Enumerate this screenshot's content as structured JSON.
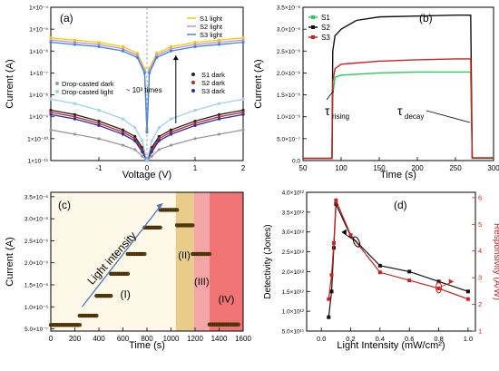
{
  "panels": {
    "a": {
      "label": "(a)"
    },
    "b": {
      "label": "(b)"
    },
    "c": {
      "label": "(c)"
    },
    "d": {
      "label": "(d)"
    }
  },
  "chart_data": [
    {
      "panel": "(a)",
      "type": "line",
      "xlabel": "Voltage (V)",
      "ylabel": "Current (A)",
      "xlim": [
        -2,
        2
      ],
      "ylim_exp": [
        -11,
        -4
      ],
      "log_scale_y": true,
      "xticks": [
        -1,
        0,
        1,
        2
      ],
      "yticks": [
        "1×10⁻⁴",
        "1×10⁻⁵",
        "1×10⁻⁶",
        "1×10⁻⁷",
        "1×10⁻⁸",
        "1×10⁻⁹",
        "1×10⁻¹⁰",
        "1×10⁻¹¹"
      ],
      "ytick_exps": [
        -4,
        -5,
        -6,
        -7,
        -8,
        -9,
        -10,
        -11
      ],
      "annotation": "~ 10³ times",
      "legend_light": [
        "S1 light",
        "S2 light",
        "S3 light"
      ],
      "legend_dark": [
        "S1 dark",
        "S2 dark",
        "S3 dark"
      ],
      "legend_drop": [
        "Drop-casted dark",
        "Drop-casted  light"
      ],
      "series": [
        {
          "name": "S1 light",
          "color": "#e8d000",
          "x": [
            -2,
            -1.5,
            -1,
            -0.5,
            -0.2,
            -0.05,
            0,
            0.05,
            0.2,
            0.5,
            1,
            1.5,
            2
          ],
          "y_exp": [
            -5.4,
            -5.5,
            -5.6,
            -5.8,
            -6.1,
            -6.8,
            -9.5,
            -6.8,
            -6.1,
            -5.8,
            -5.6,
            -5.5,
            -5.4
          ]
        },
        {
          "name": "S2 light",
          "color": "#d08ad0",
          "x": [
            -2,
            -1.5,
            -1,
            -0.5,
            -0.2,
            -0.05,
            0,
            0.05,
            0.2,
            0.5,
            1,
            1.5,
            2
          ],
          "y_exp": [
            -5.5,
            -5.6,
            -5.7,
            -5.9,
            -6.2,
            -6.9,
            -9.6,
            -6.9,
            -6.2,
            -5.9,
            -5.7,
            -5.6,
            -5.5
          ]
        },
        {
          "name": "S3 light",
          "color": "#3c8ae0",
          "x": [
            -2,
            -1.5,
            -1,
            -0.5,
            -0.2,
            -0.05,
            0,
            0.05,
            0.2,
            0.5,
            1,
            1.5,
            2
          ],
          "y_exp": [
            -5.6,
            -5.7,
            -5.8,
            -6.0,
            -6.3,
            -7.0,
            -9.7,
            -7.0,
            -6.3,
            -6.0,
            -5.8,
            -5.7,
            -5.6
          ]
        },
        {
          "name": "S1 dark",
          "color": "#222222",
          "x": [
            -2,
            -1.5,
            -1,
            -0.5,
            -0.25,
            -0.1,
            0,
            0.1,
            0.25,
            0.5,
            1,
            1.5,
            2
          ],
          "y_exp": [
            -8.7,
            -8.9,
            -9.2,
            -9.6,
            -9.9,
            -10.4,
            -11,
            -10.4,
            -9.9,
            -9.6,
            -9.2,
            -8.9,
            -8.7
          ]
        },
        {
          "name": "S2 dark",
          "color": "#cc2222",
          "x": [
            -2,
            -1.5,
            -1,
            -0.5,
            -0.25,
            -0.1,
            0,
            0.1,
            0.25,
            0.5,
            1,
            1.5,
            2
          ],
          "y_exp": [
            -8.8,
            -9.0,
            -9.3,
            -9.7,
            -10.0,
            -10.5,
            -11,
            -10.5,
            -10.0,
            -9.7,
            -9.3,
            -9.0,
            -8.8
          ]
        },
        {
          "name": "S3 dark",
          "color": "#2233aa",
          "x": [
            -2,
            -1.5,
            -1,
            -0.5,
            -0.25,
            -0.1,
            0,
            0.1,
            0.25,
            0.5,
            1,
            1.5,
            2
          ],
          "y_exp": [
            -8.9,
            -9.1,
            -9.4,
            -9.8,
            -10.1,
            -10.6,
            -11,
            -10.6,
            -10.1,
            -9.8,
            -9.4,
            -9.1,
            -8.9
          ]
        },
        {
          "name": "Drop-casted dark",
          "color": "#999999",
          "x": [
            -2,
            -1.5,
            -1,
            -0.5,
            -0.25,
            -0.1,
            0,
            0.1,
            0.25,
            0.5,
            1,
            1.5,
            2
          ],
          "y_exp": [
            -9.6,
            -9.8,
            -10.0,
            -10.3,
            -10.5,
            -10.8,
            -11,
            -10.8,
            -10.5,
            -10.3,
            -10.0,
            -9.8,
            -9.6
          ]
        },
        {
          "name": "Drop-casted  light",
          "color": "#9ad4e8",
          "x": [
            -2,
            -1.5,
            -1,
            -0.5,
            -0.25,
            -0.1,
            0,
            0.1,
            0.25,
            0.5,
            1,
            1.5,
            2
          ],
          "y_exp": [
            -8.2,
            -8.4,
            -8.7,
            -9.1,
            -9.5,
            -10.1,
            -11,
            -10.1,
            -9.5,
            -9.1,
            -8.7,
            -8.4,
            -8.2
          ]
        }
      ]
    },
    {
      "panel": "(b)",
      "type": "line",
      "xlabel": "Time (s)",
      "ylabel": "Current (A)",
      "xlim": [
        50,
        300
      ],
      "ylim": [
        0,
        3.5e-06
      ],
      "xticks": [
        50,
        100,
        150,
        200,
        250,
        300
      ],
      "yticks": [
        0,
        5e-07,
        1e-06,
        1.5e-06,
        2e-06,
        2.5e-06,
        3e-06,
        3.5e-06
      ],
      "ytick_labels": [
        "0.0",
        "5.0×10⁻⁷",
        "1.0×10⁻⁶",
        "1.5×10⁻⁶",
        "2.0×10⁻⁶",
        "2.5×10⁻⁶",
        "3.0×10⁻⁶",
        "3.5×10⁻⁶"
      ],
      "annotations": [
        "τ",
        "rising",
        "τ",
        "decay"
      ],
      "series": [
        {
          "name": "S1",
          "color": "#22cc55",
          "x": [
            50,
            88,
            89,
            92,
            100,
            150,
            200,
            250,
            270,
            272,
            300
          ],
          "y": [
            5e-08,
            5e-08,
            1.5e-06,
            1.9e-06,
            1.95e-06,
            2e-06,
            2.02e-06,
            2.02e-06,
            2.02e-06,
            5e-08,
            5e-08
          ]
        },
        {
          "name": "S2",
          "color": "#111111",
          "x": [
            50,
            88,
            89,
            92,
            100,
            120,
            150,
            200,
            250,
            270,
            272,
            300
          ],
          "y": [
            5e-08,
            5e-08,
            2.5e-06,
            2.85e-06,
            3e-06,
            3.2e-06,
            3.28e-06,
            3.3e-06,
            3.32e-06,
            3.32e-06,
            6e-08,
            6e-08
          ]
        },
        {
          "name": "S3",
          "color": "#cc2222",
          "x": [
            50,
            88,
            89,
            92,
            100,
            150,
            200,
            250,
            270,
            272,
            300
          ],
          "y": [
            5e-08,
            5e-08,
            1.8e-06,
            2.1e-06,
            2.2e-06,
            2.27e-06,
            2.3e-06,
            2.32e-06,
            2.32e-06,
            6e-08,
            6e-08
          ]
        }
      ]
    },
    {
      "panel": "(c)",
      "type": "scatter",
      "xlabel": "Time (s)",
      "ylabel": "Current (A)",
      "xlim": [
        0,
        1600
      ],
      "ylim": [
        4.5e-07,
        3.6e-06
      ],
      "xticks": [
        0,
        200,
        400,
        600,
        800,
        1000,
        1200,
        1400,
        1600
      ],
      "yticks": [
        5e-07,
        1e-06,
        1.5e-06,
        2e-06,
        2.5e-06,
        3e-06,
        3.5e-06
      ],
      "ytick_labels": [
        "5.0×10⁻⁷",
        "1.0×10⁻⁶",
        "1.5×10⁻⁶",
        "2.0×10⁻⁶",
        "2.5×10⁻⁶",
        "3.0×10⁻⁶",
        "3.5×10⁻⁶"
      ],
      "annotations": [
        "Light intensity",
        "(I)",
        "(II)",
        "(III)",
        "(IV)"
      ],
      "regions": [
        {
          "label": "(II)",
          "x_start": 1040,
          "x_end": 1190,
          "color": "#e8cc8a"
        },
        {
          "label": "(III)",
          "x_start": 1190,
          "x_end": 1320,
          "color": "#f2a6a6"
        },
        {
          "label": "(IV)",
          "x_start": 1320,
          "x_end": 1600,
          "color": "#f07474"
        }
      ],
      "steps": [
        {
          "x_start": 0,
          "x_end": 240,
          "y": 5.9e-07
        },
        {
          "x_start": 240,
          "x_end": 380,
          "y": 8e-07
        },
        {
          "x_start": 380,
          "x_end": 500,
          "y": 1.25e-06
        },
        {
          "x_start": 500,
          "x_end": 640,
          "y": 1.75e-06
        },
        {
          "x_start": 640,
          "x_end": 780,
          "y": 2.2e-06
        },
        {
          "x_start": 780,
          "x_end": 910,
          "y": 2.8e-06
        },
        {
          "x_start": 910,
          "x_end": 1050,
          "y": 3.2e-06
        },
        {
          "x_start": 1050,
          "x_end": 1180,
          "y": 2.85e-06
        },
        {
          "x_start": 1180,
          "x_end": 1320,
          "y": 2.2e-06
        },
        {
          "x_start": 1320,
          "x_end": 1560,
          "y": 6e-07
        }
      ]
    },
    {
      "panel": "(d)",
      "type": "line",
      "xlabel": "Light Intensity (mW/cm²)",
      "ylabel": "Detectivity (Jones)",
      "y2label": "Responsivity (A/W)",
      "xlim": [
        -0.1,
        1.05
      ],
      "ylim": [
        500000000000.0,
        4000000000000.0
      ],
      "y2lim": [
        1,
        6.2
      ],
      "xticks": [
        0.0,
        0.2,
        0.4,
        0.6,
        0.8,
        1.0
      ],
      "xtick_labels": [
        "0.0",
        "0.2",
        "0.4",
        "0.6",
        "0.8",
        "1.0"
      ],
      "yticks": [
        500000000000.0,
        1000000000000.0,
        1500000000000.0,
        2000000000000.0,
        2500000000000.0,
        3000000000000.0,
        3500000000000.0,
        4000000000000.0
      ],
      "ytick_labels": [
        "5.0×10¹¹",
        "1.0×10¹²",
        "1.5×10¹²",
        "2.0×10¹²",
        "2.5×10¹²",
        "3.0×10¹²",
        "3.5×10¹²",
        "4.0×10¹²"
      ],
      "y2ticks": [
        1,
        2,
        3,
        4,
        5,
        6
      ],
      "series": [
        {
          "name": "Detectivity",
          "color": "#111111",
          "axis": "left",
          "x": [
            0.05,
            0.07,
            0.085,
            0.1,
            0.2,
            0.4,
            0.6,
            0.8,
            1.0
          ],
          "y": [
            850000000000.0,
            1500000000000.0,
            2600000000000.0,
            3700000000000.0,
            2900000000000.0,
            2150000000000.0,
            2000000000000.0,
            1750000000000.0,
            1500000000000.0
          ]
        },
        {
          "name": "Responsivity",
          "color": "#cc2222",
          "axis": "right",
          "x": [
            0.05,
            0.07,
            0.085,
            0.1,
            0.2,
            0.4,
            0.6,
            0.8,
            1.0
          ],
          "y": [
            2.2,
            3.1,
            4.3,
            5.9,
            4.6,
            3.2,
            2.9,
            2.6,
            2.2
          ]
        }
      ]
    }
  ]
}
